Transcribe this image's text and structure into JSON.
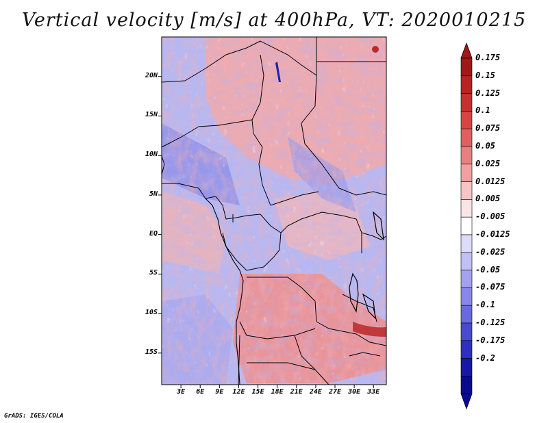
{
  "title": "Vertical velocity [m/s] at 400hPa, VT: 2020010215",
  "credit": "GrADS: IGES/COLA",
  "map": {
    "lon_range": [
      0,
      35
    ],
    "lat_range": [
      -19,
      25
    ],
    "lat_ticks": [
      {
        "label": "20N",
        "value": 20
      },
      {
        "label": "15N",
        "value": 15
      },
      {
        "label": "10N",
        "value": 10
      },
      {
        "label": "5N",
        "value": 5
      },
      {
        "label": "EQ",
        "value": 0
      },
      {
        "label": "5S",
        "value": -5
      },
      {
        "label": "10S",
        "value": -10
      },
      {
        "label": "15S",
        "value": -15
      }
    ],
    "lon_ticks": [
      {
        "label": "3E",
        "value": 3
      },
      {
        "label": "6E",
        "value": 6
      },
      {
        "label": "9E",
        "value": 9
      },
      {
        "label": "12E",
        "value": 12
      },
      {
        "label": "15E",
        "value": 15
      },
      {
        "label": "18E",
        "value": 18
      },
      {
        "label": "21E",
        "value": 21
      },
      {
        "label": "24E",
        "value": 24
      },
      {
        "label": "27E",
        "value": 27
      },
      {
        "label": "30E",
        "value": 30
      },
      {
        "label": "33E",
        "value": 33
      }
    ]
  },
  "colorbar": {
    "labels": [
      "0.175",
      "0.15",
      "0.125",
      "0.1",
      "0.075",
      "0.05",
      "0.025",
      "0.0125",
      "0.005",
      "-0.005",
      "-0.0125",
      "-0.025",
      "-0.05",
      "-0.075",
      "-0.1",
      "-0.125",
      "-0.175",
      "-0.2"
    ],
    "colors": [
      "#a01818",
      "#b82222",
      "#c83030",
      "#d84444",
      "#e06060",
      "#e88080",
      "#f0a0a0",
      "#f6c4c4",
      "#fbe4e4",
      "#ffffff",
      "#dcdcfa",
      "#c0c0f6",
      "#a2a2f0",
      "#8888ea",
      "#6a6ae0",
      "#4a4ad0",
      "#3030c0",
      "#1818a8",
      "#0a0a90"
    ],
    "top_triangle_color": "#a01818",
    "bottom_triangle_color": "#0a0a90"
  }
}
